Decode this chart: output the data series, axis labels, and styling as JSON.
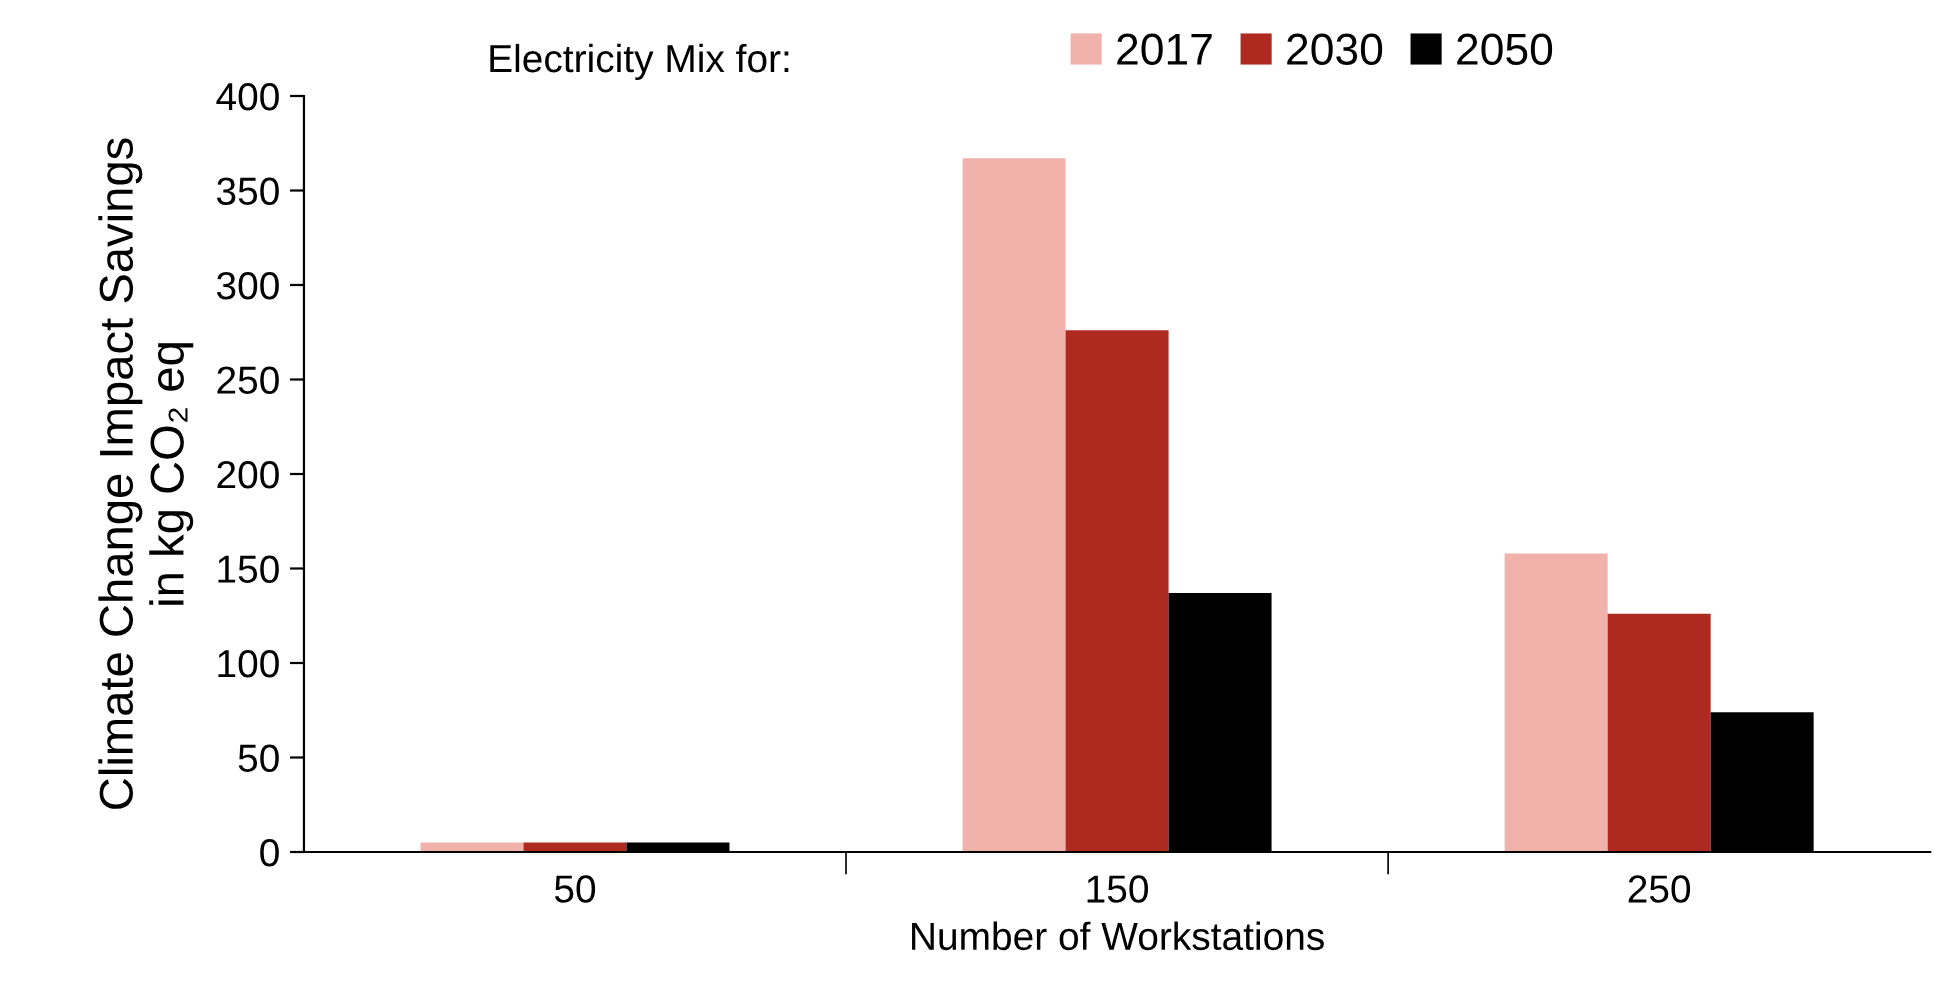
{
  "chart_data": {
    "type": "bar",
    "xlabel": "Number of Workstations",
    "ylabel": "Climate Change Impact Savings\nin kg CO₂ eq",
    "legend_title": "Electricity Mix for:",
    "categories": [
      "50",
      "150",
      "250"
    ],
    "series": [
      {
        "name": "2017",
        "color": "#f0b2aa",
        "values": [
          5,
          367,
          158
        ]
      },
      {
        "name": "2030",
        "color": "#ae2a20",
        "values": [
          5,
          276,
          126
        ]
      },
      {
        "name": "2050",
        "color": "#000000",
        "values": [
          5,
          137,
          74
        ]
      }
    ],
    "ylim": [
      0,
      400
    ],
    "yticks": [
      0,
      50,
      100,
      150,
      200,
      250,
      300,
      350,
      400
    ],
    "grid": false,
    "legend": "top"
  }
}
